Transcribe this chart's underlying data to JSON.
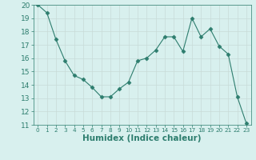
{
  "x": [
    0,
    1,
    2,
    3,
    4,
    5,
    6,
    7,
    8,
    9,
    10,
    11,
    12,
    13,
    14,
    15,
    16,
    17,
    18,
    19,
    20,
    21,
    22,
    23
  ],
  "y": [
    20,
    19.4,
    17.4,
    15.8,
    14.7,
    14.4,
    13.8,
    13.1,
    13.1,
    13.7,
    14.2,
    15.8,
    16.0,
    16.6,
    17.6,
    17.6,
    16.5,
    19.0,
    17.6,
    18.2,
    16.9,
    16.3,
    13.1,
    11.1
  ],
  "line_color": "#2d7d6e",
  "marker": "D",
  "marker_size": 2.5,
  "bg_color": "#d8f0ee",
  "grid_color": "#c8dbd8",
  "xlabel": "Humidex (Indice chaleur)",
  "xlim": [
    -0.5,
    23.5
  ],
  "ylim": [
    11,
    20
  ],
  "yticks": [
    11,
    12,
    13,
    14,
    15,
    16,
    17,
    18,
    19,
    20
  ],
  "xticks": [
    0,
    1,
    2,
    3,
    4,
    5,
    6,
    7,
    8,
    9,
    10,
    11,
    12,
    13,
    14,
    15,
    16,
    17,
    18,
    19,
    20,
    21,
    22,
    23
  ],
  "tick_color": "#2d7d6e",
  "label_color": "#2d7d6e",
  "font_size": 6.5,
  "xlabel_fontsize": 7.5
}
